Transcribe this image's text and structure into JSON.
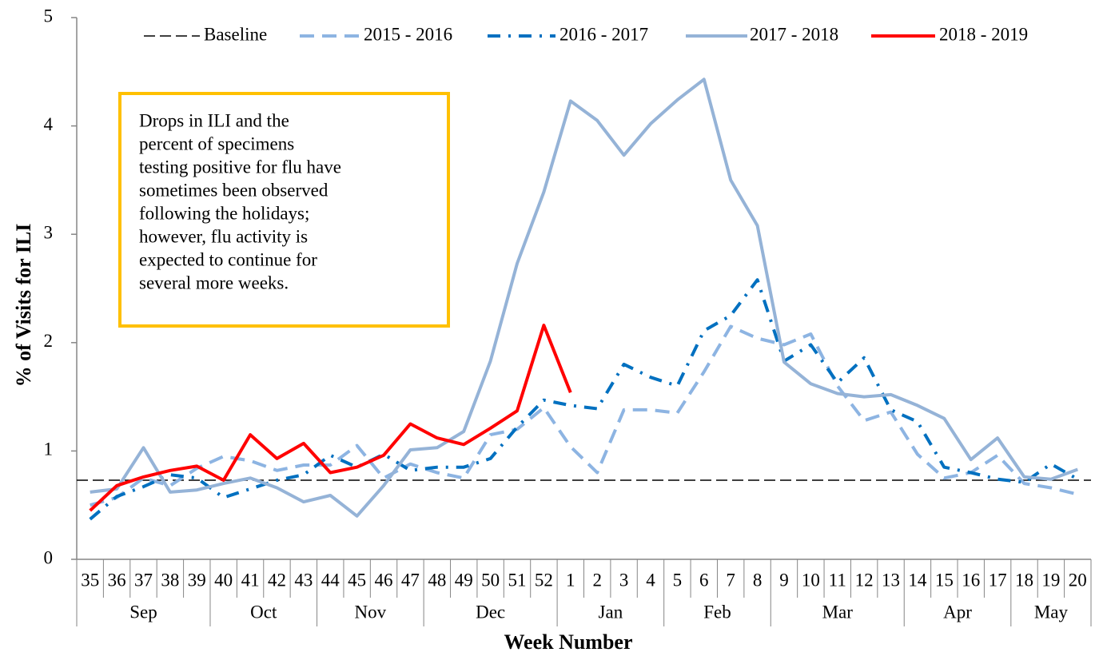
{
  "chart_data": {
    "type": "line",
    "y_label": "% of Visits for ILI",
    "x_label": "Week Number",
    "categories": [
      "35",
      "36",
      "37",
      "38",
      "39",
      "40",
      "41",
      "42",
      "43",
      "44",
      "45",
      "46",
      "47",
      "48",
      "49",
      "50",
      "51",
      "52",
      "1",
      "2",
      "3",
      "4",
      "5",
      "6",
      "7",
      "8",
      "9",
      "10",
      "11",
      "12",
      "13",
      "14",
      "15",
      "16",
      "17",
      "18",
      "19",
      "20"
    ],
    "months": [
      "Sep",
      null,
      null,
      null,
      null,
      "Oct",
      null,
      null,
      null,
      "Nov",
      null,
      null,
      null,
      "Dec",
      null,
      null,
      null,
      null,
      "Jan",
      null,
      null,
      null,
      "Feb",
      null,
      null,
      null,
      "Mar",
      null,
      null,
      null,
      null,
      "Apr",
      null,
      null,
      null,
      "May",
      null,
      null
    ],
    "ylim": [
      0,
      5
    ],
    "yticks": [
      0,
      1,
      2,
      3,
      4,
      5
    ],
    "annotation": [
      "Drops in ILI and the",
      "percent of specimens",
      "testing positive for flu have",
      "sometimes been observed",
      "following the holidays;",
      "however, flu activity is",
      "expected to continue for",
      "several more weeks."
    ],
    "annotation_border": "#FFC000",
    "series": [
      {
        "name": "Baseline",
        "color": "#000000",
        "dash": "dash",
        "value": 0.73
      },
      {
        "name": "2015 - 2016",
        "color": "#8DB4E2",
        "dash": "dash",
        "values": [
          0.5,
          0.57,
          0.75,
          0.68,
          0.84,
          0.95,
          0.91,
          0.82,
          0.87,
          0.87,
          1.05,
          0.75,
          0.88,
          0.8,
          0.75,
          1.15,
          1.2,
          1.4,
          1.04,
          0.8,
          1.38,
          1.38,
          1.35,
          1.73,
          2.15,
          2.04,
          1.98,
          2.08,
          1.6,
          1.28,
          1.36,
          0.97,
          0.75,
          0.8,
          0.96,
          0.7,
          0.66,
          0.6
        ]
      },
      {
        "name": "2016 - 2017",
        "color": "#0070C0",
        "dash": "dash-dot",
        "values": [
          0.37,
          0.58,
          0.67,
          0.78,
          0.75,
          0.57,
          0.65,
          0.73,
          0.78,
          0.96,
          0.85,
          0.97,
          0.82,
          0.85,
          0.85,
          0.93,
          1.22,
          1.47,
          1.42,
          1.39,
          1.8,
          1.68,
          1.6,
          2.11,
          2.25,
          2.58,
          1.83,
          1.98,
          1.63,
          1.86,
          1.38,
          1.27,
          0.85,
          0.8,
          0.74,
          0.71,
          0.88,
          0.74
        ]
      },
      {
        "name": "2017 - 2018",
        "color": "#95B3D7",
        "dash": "solid",
        "values": [
          0.62,
          0.65,
          1.03,
          0.62,
          0.64,
          0.7,
          0.75,
          0.66,
          0.53,
          0.59,
          0.4,
          0.68,
          1.01,
          1.03,
          1.18,
          1.83,
          2.73,
          3.39,
          4.23,
          4.05,
          3.73,
          4.02,
          4.24,
          4.43,
          3.5,
          3.08,
          1.82,
          1.62,
          1.53,
          1.5,
          1.52,
          1.42,
          1.3,
          0.92,
          1.12,
          0.76,
          0.74,
          0.83
        ]
      },
      {
        "name": "2018 - 2019",
        "color": "#FF0000",
        "dash": "solid",
        "values": [
          0.45,
          0.68,
          0.76,
          0.82,
          0.86,
          0.73,
          1.15,
          0.93,
          1.07,
          0.8,
          0.85,
          0.96,
          1.25,
          1.12,
          1.06,
          1.21,
          1.37,
          2.16,
          1.54,
          null,
          null,
          null,
          null,
          null,
          null,
          null,
          null,
          null,
          null,
          null,
          null,
          null,
          null,
          null,
          null,
          null,
          null,
          null
        ]
      }
    ]
  }
}
